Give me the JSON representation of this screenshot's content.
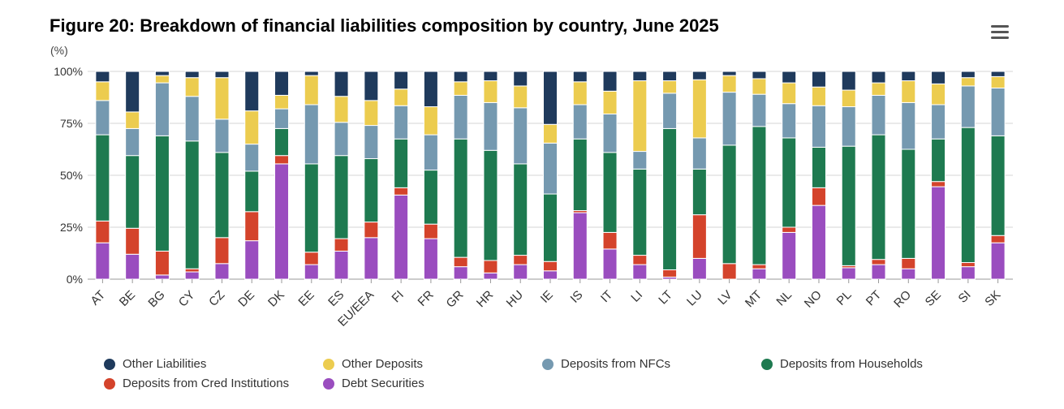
{
  "header": {
    "title": "Figure 20: Breakdown of financial liabilities composition by country, June 2025",
    "unit": "(%)",
    "menu_icon": "hamburger-menu-icon"
  },
  "chart_data": {
    "type": "bar",
    "stacked": true,
    "title": "Figure 20: Breakdown of financial liabilities composition by country, June 2025",
    "ylabel": "(%)",
    "ylim": [
      0,
      100
    ],
    "yticks": [
      "0%",
      "25%",
      "50%",
      "75%",
      "100%"
    ],
    "ytick_values": [
      0,
      25,
      50,
      75,
      100
    ],
    "categories": [
      "AT",
      "BE",
      "BG",
      "CY",
      "CZ",
      "DE",
      "DK",
      "EE",
      "ES",
      "EU/EEA",
      "FI",
      "FR",
      "GR",
      "HR",
      "HU",
      "IE",
      "IS",
      "IT",
      "LI",
      "LT",
      "LU",
      "LV",
      "MT",
      "NL",
      "NO",
      "PL",
      "PT",
      "RO",
      "SE",
      "SI",
      "SK"
    ],
    "series": [
      {
        "name": "Debt Securities",
        "color": "#9a4dbf",
        "values": [
          17.5,
          12,
          2,
          3.5,
          7.5,
          18.5,
          55.5,
          7,
          13.5,
          20,
          40.5,
          19.5,
          6,
          3,
          7,
          4,
          32,
          14.5,
          7,
          1,
          10,
          0,
          5,
          22.5,
          35.5,
          5.5,
          7,
          5,
          44.5,
          6,
          17.5
        ]
      },
      {
        "name": "Deposits from Cred Institutions",
        "color": "#d4432b",
        "values": [
          10.5,
          12.5,
          11.5,
          1.5,
          12.5,
          14,
          4,
          6,
          6,
          7.5,
          3.5,
          7,
          4.5,
          6,
          4.5,
          4.5,
          1,
          8,
          4.5,
          3.5,
          21,
          7.5,
          2,
          2.5,
          8.5,
          1,
          2.5,
          5,
          2.5,
          2,
          3.5
        ]
      },
      {
        "name": "Deposits from Households",
        "color": "#1e7a50",
        "values": [
          41.5,
          35,
          55.5,
          61.5,
          41,
          19.5,
          13,
          42.5,
          40,
          30.5,
          23.5,
          26,
          57,
          53,
          44,
          32.5,
          34.5,
          38.5,
          41.5,
          68,
          22,
          57,
          66.5,
          43,
          19.5,
          57.5,
          60,
          52.5,
          20.5,
          65,
          48
        ]
      },
      {
        "name": "Deposits from NFCs",
        "color": "#7599b0",
        "values": [
          16.5,
          13,
          25.5,
          21.5,
          16,
          13,
          9.5,
          28.5,
          16,
          16,
          16,
          17,
          21,
          23,
          27,
          24.5,
          16.5,
          18.5,
          8.5,
          17,
          15,
          25.5,
          15.5,
          16.5,
          20,
          19,
          19,
          22.5,
          16.5,
          20,
          23
        ]
      },
      {
        "name": "Other Deposits",
        "color": "#eccc4f",
        "values": [
          9,
          8,
          3.5,
          9,
          20,
          16,
          6.5,
          14,
          12.5,
          12,
          8,
          13.5,
          6.5,
          10.5,
          10.5,
          9,
          11,
          11,
          34,
          6,
          28,
          8,
          7.5,
          10,
          9,
          8,
          6,
          10.5,
          10,
          4,
          5.5
        ]
      },
      {
        "name": "Other Liabilities",
        "color": "#1f3a5c",
        "values": [
          5,
          19.5,
          2,
          3,
          3,
          19,
          11.5,
          2,
          12,
          14,
          8.5,
          17,
          5,
          4.5,
          7,
          25.5,
          5,
          9.5,
          4.5,
          4.5,
          4,
          2,
          3.5,
          5.5,
          7.5,
          9,
          5.5,
          4.5,
          6,
          3,
          2.5
        ]
      }
    ],
    "legend": [
      "Other Liabilities",
      "Other Deposits",
      "Deposits from NFCs",
      "Deposits from Households",
      "Deposits from Cred Institutions",
      "Debt Securities"
    ],
    "legend_position": "bottom",
    "grid": true
  }
}
